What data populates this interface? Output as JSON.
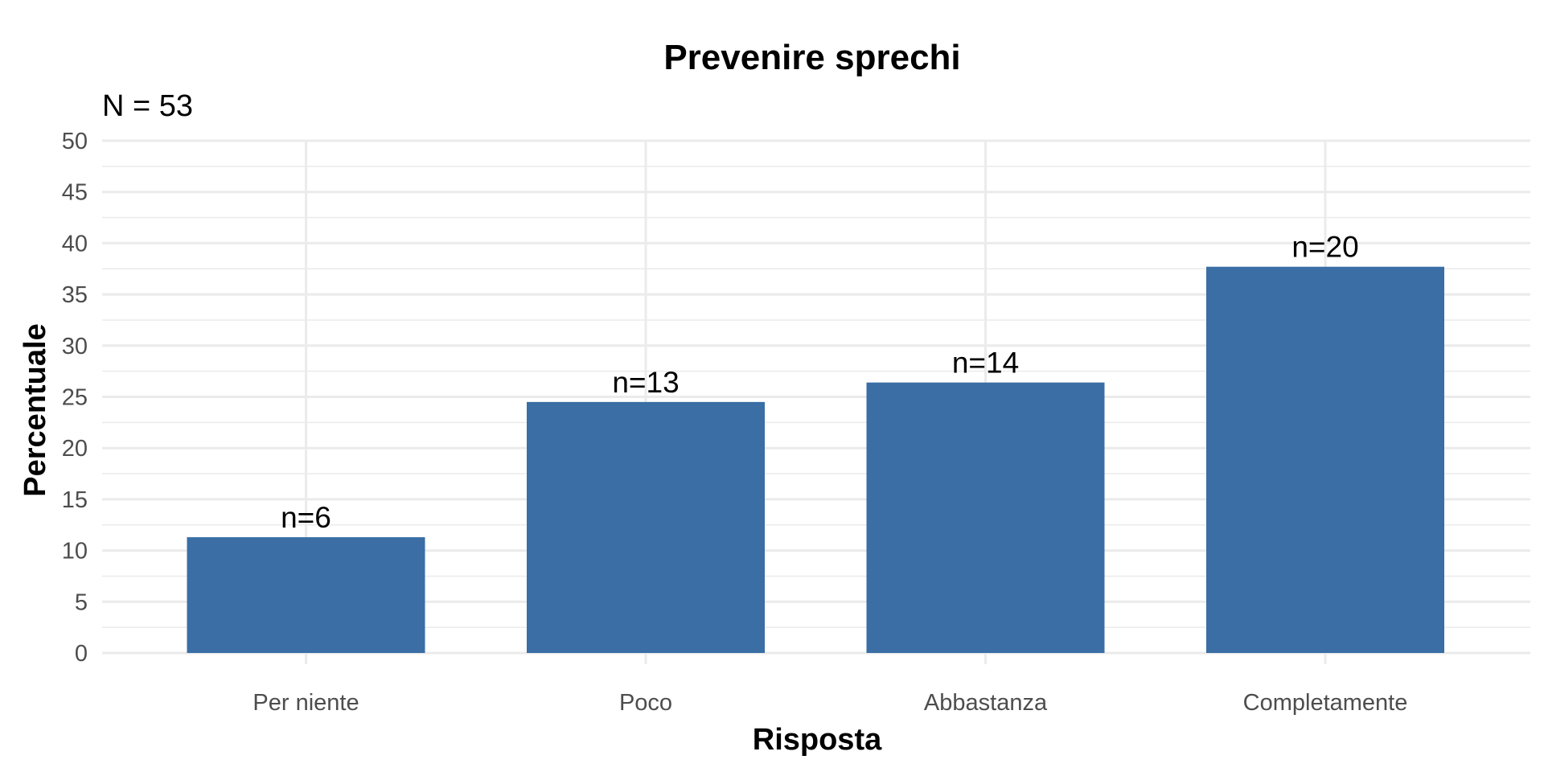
{
  "chart_data": {
    "type": "bar",
    "title": "Prevenire sprechi",
    "subtitle": "N = 53",
    "xlabel": "Risposta",
    "ylabel": "Percentuale",
    "categories": [
      "Per niente",
      "Poco",
      "Abbastanza",
      "Completamente"
    ],
    "values": [
      11.3,
      24.5,
      26.4,
      37.7
    ],
    "data_labels": [
      "n=6",
      "n=13",
      "n=14",
      "n=20"
    ],
    "ylim": [
      0,
      50
    ],
    "y_ticks": [
      0,
      5,
      10,
      15,
      20,
      25,
      30,
      35,
      40,
      45,
      50
    ],
    "y_tick_labels": [
      "0",
      "5",
      "10",
      "15",
      "20",
      "25",
      "30",
      "35",
      "40",
      "45",
      "50"
    ],
    "grid": true,
    "legend": "none",
    "bar_color": "#3a6ea5"
  }
}
